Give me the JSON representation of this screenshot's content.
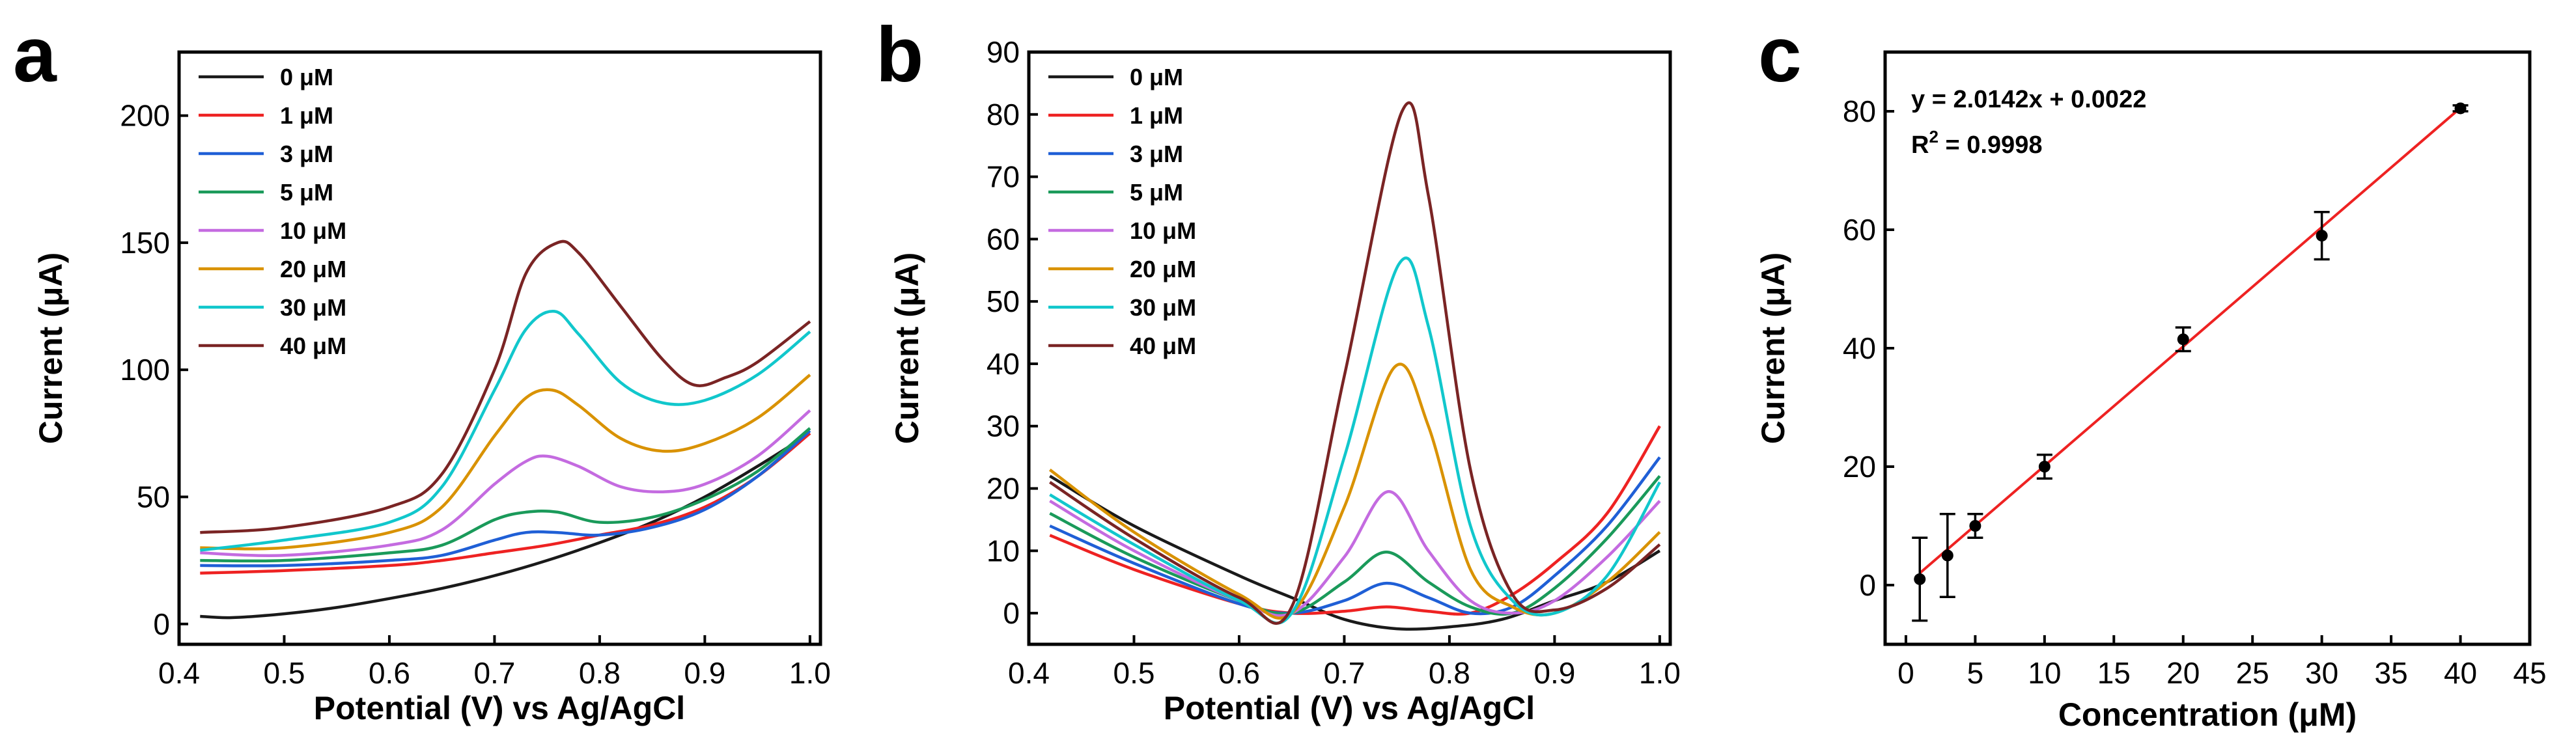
{
  "chart_data": [
    {
      "panel": "a",
      "type": "line",
      "xlabel": "Potential (V) vs Ag/AgCl",
      "ylabel": "Current (μA)",
      "xlim": [
        0.4,
        1.01
      ],
      "ylim": [
        -8,
        225
      ],
      "xticks": [
        0.4,
        0.5,
        0.6,
        0.7,
        0.8,
        0.9,
        1.0
      ],
      "xtick_labels": [
        "0.4",
        "0.5",
        "0.6",
        "0.7",
        "0.8",
        "0.9",
        "1.0"
      ],
      "yticks": [
        0,
        50,
        100,
        150,
        200
      ],
      "ytick_labels": [
        "0",
        "50",
        "100",
        "150",
        "200"
      ],
      "legend_position": "top-left",
      "series": [
        {
          "name": "0 μM",
          "color": "#1a1a1a",
          "x": [
            0.42,
            0.45,
            0.5,
            0.55,
            0.6,
            0.65,
            0.7,
            0.75,
            0.8,
            0.85,
            0.9,
            0.95,
            1.0
          ],
          "y": [
            3,
            2.5,
            4,
            6.5,
            10,
            14,
            19,
            25,
            32,
            40,
            50,
            62,
            75
          ]
        },
        {
          "name": "1 μM",
          "color": "#ee2222",
          "x": [
            0.42,
            0.5,
            0.6,
            0.65,
            0.7,
            0.75,
            0.8,
            0.85,
            0.9,
            0.95,
            1.0
          ],
          "y": [
            20,
            21,
            23,
            25,
            28,
            31,
            35,
            39,
            46,
            58,
            75
          ]
        },
        {
          "name": "3 μM",
          "color": "#1f5fd6",
          "x": [
            0.42,
            0.5,
            0.6,
            0.65,
            0.7,
            0.73,
            0.76,
            0.8,
            0.85,
            0.9,
            0.95,
            1.0
          ],
          "y": [
            23,
            23,
            25,
            27,
            33,
            36,
            36,
            35,
            38,
            45,
            58,
            76
          ]
        },
        {
          "name": "5 μM",
          "color": "#1a9a5a",
          "x": [
            0.42,
            0.5,
            0.6,
            0.65,
            0.7,
            0.73,
            0.76,
            0.8,
            0.85,
            0.9,
            0.95,
            1.0
          ],
          "y": [
            25,
            25,
            28,
            31,
            41,
            44,
            44,
            40,
            42,
            49,
            60,
            77
          ]
        },
        {
          "name": "10 μM",
          "color": "#c46be0",
          "x": [
            0.42,
            0.5,
            0.6,
            0.65,
            0.7,
            0.73,
            0.75,
            0.78,
            0.82,
            0.86,
            0.9,
            0.95,
            1.0
          ],
          "y": [
            28,
            27,
            31,
            37,
            55,
            64,
            66,
            62,
            54,
            52,
            55,
            66,
            84
          ]
        },
        {
          "name": "20 μM",
          "color": "#d99200",
          "x": [
            0.42,
            0.5,
            0.6,
            0.65,
            0.7,
            0.73,
            0.755,
            0.78,
            0.82,
            0.86,
            0.9,
            0.95,
            1.0
          ],
          "y": [
            30,
            30,
            36,
            46,
            74,
            89,
            92,
            86,
            73,
            68,
            71,
            81,
            98
          ]
        },
        {
          "name": "30 μM",
          "color": "#11c7cc",
          "x": [
            0.42,
            0.5,
            0.6,
            0.65,
            0.7,
            0.73,
            0.757,
            0.78,
            0.82,
            0.86,
            0.9,
            0.95,
            1.0
          ],
          "y": [
            29,
            33,
            40,
            54,
            92,
            116,
            123,
            114,
            95,
            87,
            88,
            98,
            115
          ]
        },
        {
          "name": "40 μM",
          "color": "#7a2424",
          "x": [
            0.42,
            0.5,
            0.6,
            0.65,
            0.7,
            0.73,
            0.76,
            0.78,
            0.82,
            0.86,
            0.89,
            0.92,
            0.95,
            1.0
          ],
          "y": [
            36,
            38,
            46,
            59,
            100,
            138,
            150,
            146,
            125,
            104,
            94,
            97,
            103,
            119
          ]
        }
      ]
    },
    {
      "panel": "b",
      "type": "line",
      "xlabel": "Potential (V) vs Ag/AgCl",
      "ylabel": "Current (μA)",
      "xlim": [
        0.4,
        1.01
      ],
      "ylim": [
        -5,
        90
      ],
      "xticks": [
        0.4,
        0.5,
        0.6,
        0.7,
        0.8,
        0.9,
        1.0
      ],
      "xtick_labels": [
        "0.4",
        "0.5",
        "0.6",
        "0.7",
        "0.8",
        "0.9",
        "1.0"
      ],
      "yticks": [
        0,
        10,
        20,
        30,
        40,
        50,
        60,
        70,
        80,
        90
      ],
      "ytick_labels": [
        "0",
        "10",
        "20",
        "30",
        "40",
        "50",
        "60",
        "70",
        "80",
        "90"
      ],
      "legend_position": "top-left",
      "series": [
        {
          "name": "0 μM",
          "color": "#1a1a1a",
          "x": [
            0.42,
            0.5,
            0.6,
            0.65,
            0.7,
            0.75,
            0.8,
            0.85,
            0.9,
            0.95,
            1.0
          ],
          "y": [
            22,
            14,
            6,
            2.5,
            -1,
            -2.5,
            -2.2,
            -1,
            2,
            5,
            10
          ]
        },
        {
          "name": "1 μM",
          "color": "#ee2222",
          "x": [
            0.42,
            0.5,
            0.6,
            0.65,
            0.7,
            0.74,
            0.78,
            0.82,
            0.86,
            0.9,
            0.95,
            1.0
          ],
          "y": [
            12.5,
            7,
            1.5,
            0,
            0.3,
            1,
            0.3,
            0,
            3,
            8,
            16,
            30
          ]
        },
        {
          "name": "3 μM",
          "color": "#1f5fd6",
          "x": [
            0.42,
            0.5,
            0.6,
            0.65,
            0.7,
            0.74,
            0.78,
            0.82,
            0.86,
            0.9,
            0.95,
            1.0
          ],
          "y": [
            14,
            8,
            1.5,
            0,
            2,
            4.8,
            2.5,
            0,
            1,
            6,
            14,
            25
          ]
        },
        {
          "name": "5 μM",
          "color": "#1a9a5a",
          "x": [
            0.42,
            0.5,
            0.6,
            0.65,
            0.7,
            0.74,
            0.78,
            0.82,
            0.86,
            0.9,
            0.95,
            1.0
          ],
          "y": [
            16,
            9,
            2,
            0,
            5,
            9.8,
            5,
            1,
            0,
            4,
            12,
            22
          ]
        },
        {
          "name": "10 μM",
          "color": "#c46be0",
          "x": [
            0.42,
            0.5,
            0.6,
            0.65,
            0.7,
            0.742,
            0.78,
            0.82,
            0.86,
            0.9,
            0.95,
            1.0
          ],
          "y": [
            18,
            10,
            2,
            0,
            9,
            19.5,
            10,
            2,
            0,
            2,
            9,
            18
          ]
        },
        {
          "name": "20 μM",
          "color": "#d99200",
          "x": [
            0.42,
            0.5,
            0.6,
            0.65,
            0.7,
            0.748,
            0.78,
            0.82,
            0.86,
            0.9,
            0.95,
            1.0
          ],
          "y": [
            23,
            13,
            3,
            0,
            17,
            39.5,
            30,
            7,
            1,
            0,
            5,
            13
          ]
        },
        {
          "name": "30 μM",
          "color": "#11c7cc",
          "x": [
            0.42,
            0.5,
            0.6,
            0.65,
            0.7,
            0.752,
            0.78,
            0.82,
            0.86,
            0.9,
            0.95,
            1.0
          ],
          "y": [
            19,
            11,
            2,
            0,
            25,
            56,
            46,
            14,
            2,
            0,
            6,
            21
          ]
        },
        {
          "name": "40 μM",
          "color": "#7a2424",
          "x": [
            0.42,
            0.5,
            0.6,
            0.65,
            0.7,
            0.755,
            0.78,
            0.82,
            0.86,
            0.9,
            0.95,
            1.0
          ],
          "y": [
            21,
            12,
            2.5,
            1,
            38,
            80.5,
            67,
            23,
            3,
            0.5,
            4,
            11
          ]
        }
      ]
    },
    {
      "panel": "c",
      "type": "scatter",
      "xlabel": "Concentration (μM)",
      "ylabel": "Current (μA)",
      "xlim": [
        -1.5,
        45
      ],
      "ylim": [
        -10,
        90
      ],
      "xticks": [
        0,
        5,
        10,
        15,
        20,
        25,
        30,
        35,
        40,
        45
      ],
      "xtick_labels": [
        "0",
        "5",
        "10",
        "15",
        "20",
        "25",
        "30",
        "35",
        "40",
        "45"
      ],
      "yticks": [
        0,
        20,
        40,
        60,
        80
      ],
      "ytick_labels": [
        "0",
        "20",
        "40",
        "60",
        "80"
      ],
      "points": {
        "x": [
          1,
          3,
          5,
          10,
          20,
          30,
          40
        ],
        "y": [
          1,
          5,
          10,
          20,
          41.5,
          59,
          80.5
        ],
        "err": [
          7,
          7,
          2,
          2,
          2,
          4,
          0.5
        ]
      },
      "fit": {
        "slope": 2.0142,
        "intercept": 0.0022,
        "x_range": [
          1,
          40
        ],
        "color": "#ee2222"
      },
      "equation": "y = 2.0142x + 0.0022",
      "r2_label": "R",
      "r2_sup": "2",
      "r2_value": " = 0.9998"
    }
  ]
}
